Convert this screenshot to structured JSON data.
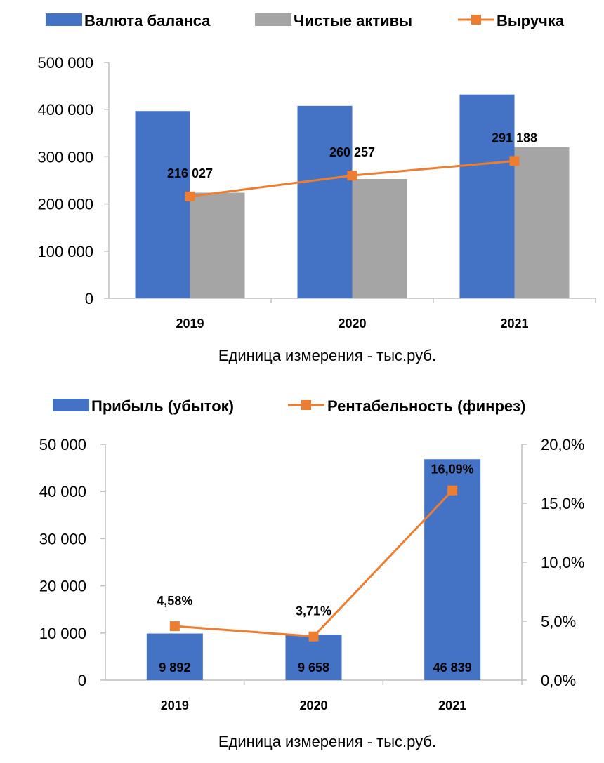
{
  "colors": {
    "blue": "#4472C4",
    "gray": "#A5A5A5",
    "orange": "#ED7D31",
    "axis": "#BFBFBF"
  },
  "chart_data": [
    {
      "type": "bar",
      "categories": [
        "2019",
        "2020",
        "2021"
      ],
      "series": [
        {
          "name": "Валюта баланса",
          "kind": "bar",
          "color": "#4472C4",
          "values": [
            397000,
            408000,
            432000
          ]
        },
        {
          "name": "Чистые активы",
          "kind": "bar",
          "color": "#A5A5A5",
          "values": [
            224000,
            253000,
            320000
          ]
        },
        {
          "name": "Выручка",
          "kind": "line",
          "color": "#ED7D31",
          "values": [
            216027,
            260257,
            291188
          ],
          "labels": [
            "216 027",
            "260 257",
            "291 188"
          ]
        }
      ],
      "ylim": [
        0,
        500000
      ],
      "yticks": [
        "0",
        "100 000",
        "200 000",
        "300 000",
        "400 000",
        "500 000"
      ],
      "xlabel": "Единица измерения - тыс.руб.",
      "legend": "top"
    },
    {
      "type": "bar",
      "categories": [
        "2019",
        "2020",
        "2021"
      ],
      "series": [
        {
          "name": "Прибыль (убыток)",
          "kind": "bar",
          "color": "#4472C4",
          "values": [
            9892,
            9658,
            46839
          ],
          "labels": [
            "9 892",
            "9 658",
            "46 839"
          ]
        },
        {
          "name": "Рентабельность (финрез)",
          "kind": "line",
          "axis": "right",
          "color": "#ED7D31",
          "values": [
            4.58,
            3.71,
            16.09
          ],
          "labels": [
            "4,58%",
            "3,71%",
            "16,09%"
          ]
        }
      ],
      "ylim": [
        0,
        50000
      ],
      "yticks": [
        "0",
        "10 000",
        "20 000",
        "30 000",
        "40 000",
        "50 000"
      ],
      "y2lim": [
        0,
        20
      ],
      "y2ticks": [
        "0,0%",
        "5,0%",
        "10,0%",
        "15,0%",
        "20,0%"
      ],
      "xlabel": "Единица измерения - тыс.руб.",
      "legend": "top"
    }
  ]
}
